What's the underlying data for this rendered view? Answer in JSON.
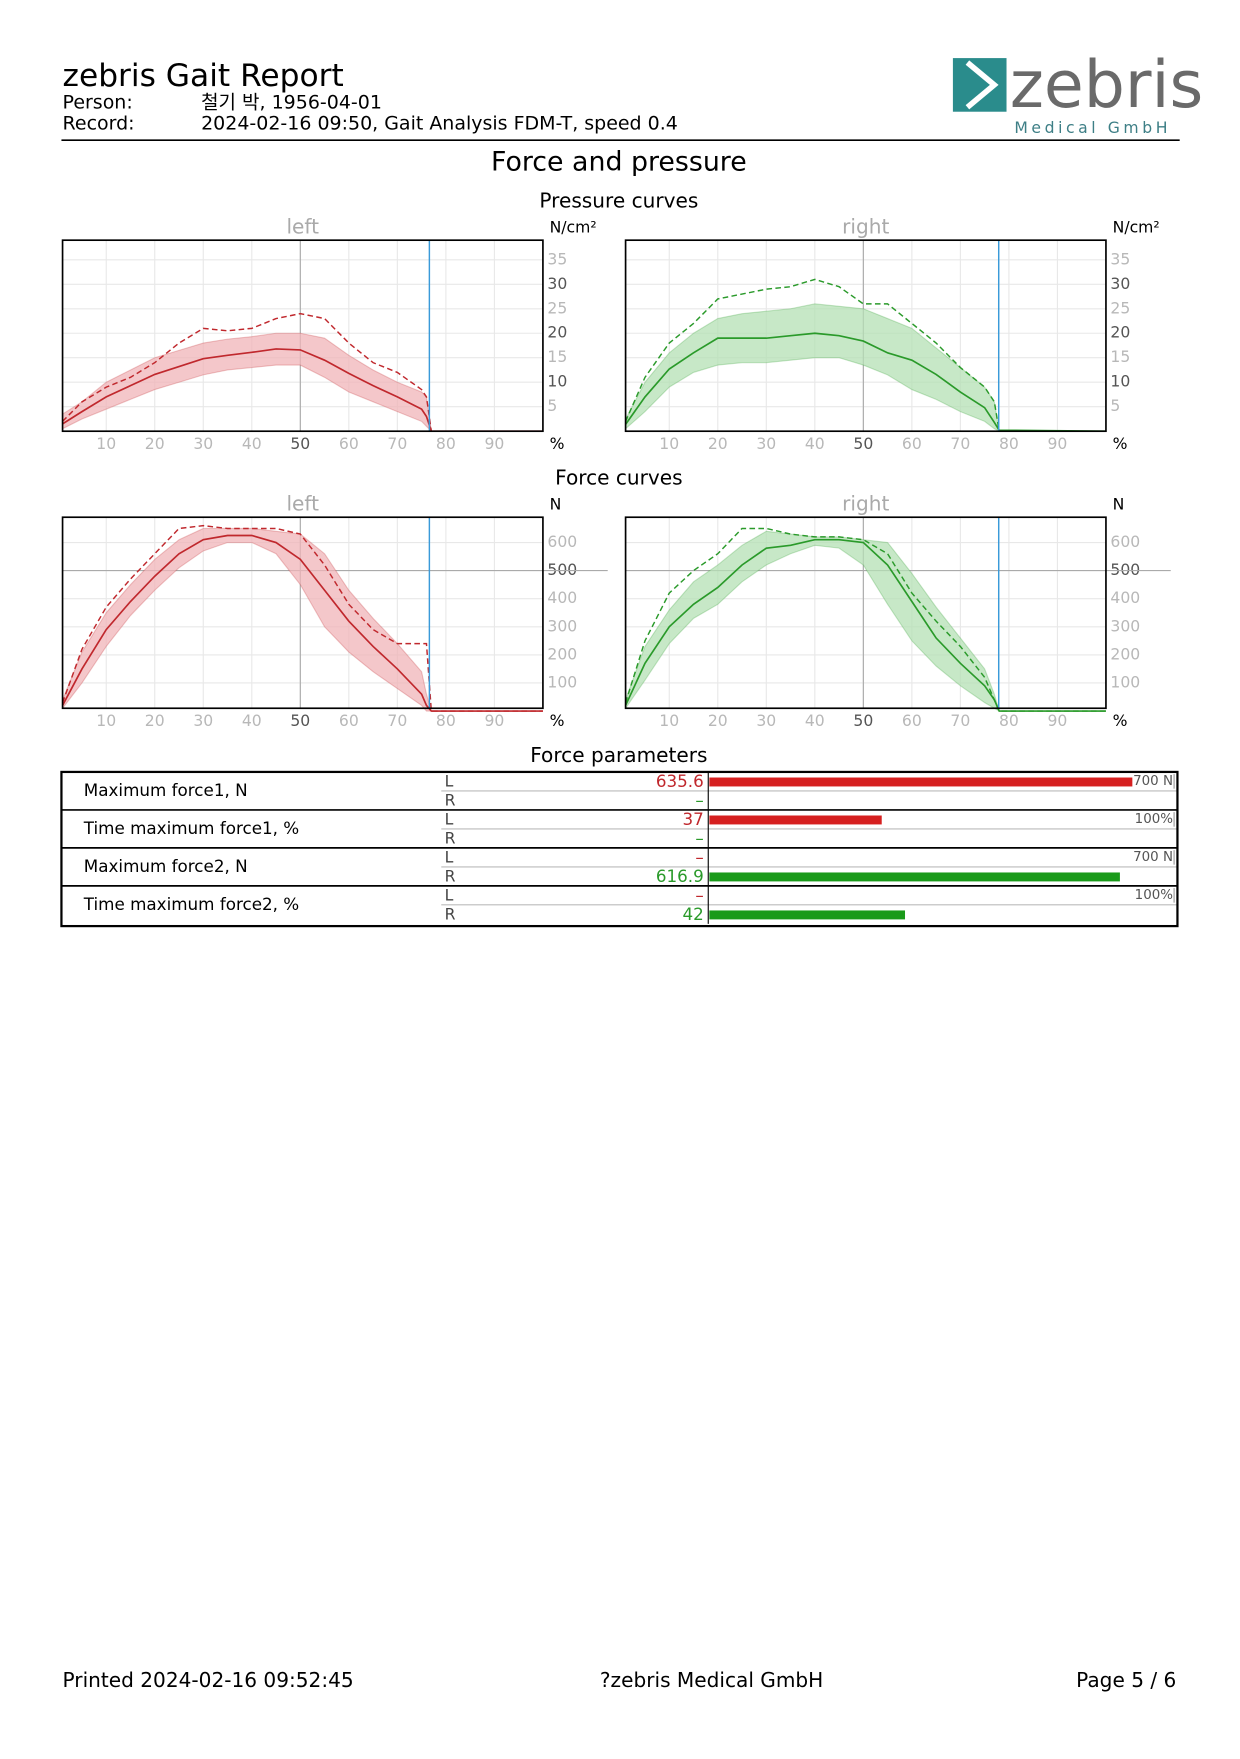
{
  "header": {
    "title": "zebris Gait Report",
    "person_label": "Person:",
    "person": "철기 박, 1956-04-01",
    "record_label": "Record:",
    "record": "2024-02-16 09:50, Gait Analysis FDM-T, speed 0.4",
    "logo_name": "zebris",
    "logo_sub": "Medical GmbH"
  },
  "section_title": "Force and pressure",
  "pressure_title": "Pressure curves",
  "force_title": "Force curves",
  "charts": [
    {
      "type": "line",
      "title": "left",
      "y_unit": "N/cm²",
      "x_unit": "%",
      "color": "#c0282d",
      "band_color": "#f0b4b8",
      "x": [
        1,
        5,
        10,
        15,
        20,
        25,
        30,
        35,
        40,
        45,
        50,
        55,
        60,
        65,
        70,
        75,
        76,
        77,
        100
      ],
      "mean": [
        1.5,
        4,
        7,
        9.3,
        11.6,
        13.2,
        14.8,
        15.5,
        16.1,
        16.8,
        16.6,
        14.5,
        11.8,
        9.3,
        7,
        4.5,
        3,
        0,
        0
      ],
      "upper": [
        3.5,
        6,
        10,
        12.5,
        15,
        16.5,
        18,
        18.8,
        19.3,
        20,
        20,
        19,
        15.5,
        12.5,
        10,
        8,
        7,
        0,
        0
      ],
      "lower": [
        0.5,
        2.5,
        4.5,
        6.5,
        8.5,
        10,
        11.5,
        12.5,
        13,
        13.5,
        13.5,
        11,
        8,
        6,
        4,
        2,
        1,
        0,
        0
      ],
      "max": [
        2,
        6,
        9,
        11,
        14,
        18,
        21,
        20.5,
        21,
        23,
        24,
        23,
        18,
        14,
        12,
        8.5,
        7,
        0,
        0
      ],
      "stance_end": 76.6,
      "xlim": [
        1,
        100
      ],
      "xticks": [
        10,
        20,
        30,
        40,
        50,
        60,
        70,
        80,
        90
      ],
      "dark_xticks": [
        50
      ],
      "ylim": [
        0,
        39
      ],
      "yticks": [
        5,
        10,
        15,
        20,
        25,
        30,
        35
      ],
      "dark_yticks": [
        10,
        20,
        30
      ],
      "ref_x": 50
    },
    {
      "type": "line",
      "title": "right",
      "y_unit": "N/cm²",
      "x_unit": "%",
      "color": "#2a9a2a",
      "band_color": "#b4e0b4",
      "x": [
        1,
        5,
        10,
        15,
        20,
        25,
        30,
        35,
        40,
        45,
        50,
        55,
        60,
        65,
        70,
        75,
        77,
        78,
        100
      ],
      "mean": [
        1.4,
        7,
        12.7,
        16,
        19,
        19,
        19,
        19.5,
        20,
        19.5,
        18.4,
        16,
        14.5,
        11.6,
        8,
        4.8,
        1.8,
        0.2,
        0
      ],
      "upper": [
        2.5,
        10,
        16,
        20,
        23,
        24,
        24.5,
        25,
        26,
        25.5,
        25,
        23,
        21,
        17,
        13,
        9,
        6,
        0,
        0
      ],
      "lower": [
        0.5,
        4,
        9,
        12,
        13.5,
        14,
        14,
        14.5,
        15,
        15,
        13.5,
        11.5,
        8.5,
        6.5,
        4,
        2,
        0.5,
        0,
        0
      ],
      "max": [
        2,
        11,
        18,
        22,
        27,
        28,
        29,
        29.5,
        31,
        29.5,
        26,
        26,
        22,
        18,
        13,
        9,
        6,
        0,
        0
      ],
      "stance_end": 77.9,
      "xlim": [
        1,
        100
      ],
      "xticks": [
        10,
        20,
        30,
        40,
        50,
        60,
        70,
        80,
        90
      ],
      "dark_xticks": [
        50
      ],
      "ylim": [
        0,
        39
      ],
      "yticks": [
        5,
        10,
        15,
        20,
        25,
        30,
        35
      ],
      "dark_yticks": [
        10,
        20,
        30
      ],
      "ref_x": 50
    },
    {
      "type": "line",
      "title": "left",
      "y_unit": "N",
      "x_unit": "%",
      "color": "#c0282d",
      "band_color": "#f0b4b8",
      "x": [
        1,
        5,
        10,
        15,
        20,
        25,
        30,
        35,
        40,
        45,
        50,
        55,
        60,
        65,
        70,
        75,
        76,
        77,
        100
      ],
      "mean": [
        20,
        150,
        290,
        390,
        480,
        560,
        610,
        625,
        625,
        600,
        540,
        430,
        320,
        230,
        150,
        60,
        20,
        0,
        0
      ],
      "upper": [
        40,
        210,
        350,
        450,
        540,
        610,
        650,
        650,
        650,
        640,
        630,
        560,
        430,
        330,
        240,
        140,
        60,
        0,
        0
      ],
      "lower": [
        10,
        100,
        230,
        340,
        430,
        510,
        570,
        600,
        600,
        560,
        450,
        300,
        210,
        140,
        80,
        20,
        0,
        0,
        0
      ],
      "max": [
        30,
        220,
        370,
        470,
        560,
        650,
        660,
        650,
        650,
        650,
        630,
        520,
        380,
        290,
        240,
        240,
        240,
        0,
        0
      ],
      "stance_end": 76.6,
      "xlim": [
        1,
        100
      ],
      "xticks": [
        10,
        20,
        30,
        40,
        50,
        60,
        70,
        80,
        90
      ],
      "dark_xticks": [
        50
      ],
      "ylim": [
        10,
        690
      ],
      "yticks": [
        100,
        200,
        300,
        400,
        500,
        600
      ],
      "dark_yticks": [
        500
      ],
      "ref_x": 50,
      "ref_y": 500
    },
    {
      "type": "line",
      "title": "right",
      "y_unit": "N",
      "x_unit": "%",
      "color": "#2a9a2a",
      "band_color": "#b4e0b4",
      "x": [
        1,
        5,
        10,
        15,
        20,
        25,
        30,
        35,
        40,
        45,
        50,
        55,
        60,
        65,
        70,
        75,
        77,
        78,
        100
      ],
      "mean": [
        20,
        170,
        300,
        380,
        440,
        520,
        580,
        590,
        610,
        610,
        600,
        520,
        390,
        260,
        170,
        90,
        40,
        0,
        0
      ],
      "upper": [
        40,
        230,
        360,
        460,
        520,
        590,
        640,
        630,
        620,
        620,
        610,
        600,
        490,
        370,
        260,
        150,
        60,
        0,
        0
      ],
      "lower": [
        10,
        110,
        240,
        330,
        380,
        460,
        520,
        560,
        590,
        580,
        520,
        380,
        250,
        160,
        90,
        30,
        10,
        0,
        0
      ],
      "max": [
        30,
        250,
        420,
        500,
        560,
        650,
        650,
        630,
        620,
        620,
        610,
        560,
        420,
        320,
        230,
        120,
        40,
        0,
        0
      ],
      "stance_end": 77.9,
      "xlim": [
        1,
        100
      ],
      "xticks": [
        10,
        20,
        30,
        40,
        50,
        60,
        70,
        80,
        90
      ],
      "dark_xticks": [
        50
      ],
      "ylim": [
        10,
        690
      ],
      "yticks": [
        100,
        200,
        300,
        400,
        500,
        600
      ],
      "dark_yticks": [
        500
      ],
      "ref_x": 50,
      "ref_y": 500
    }
  ],
  "parameters": {
    "title": "Force parameters",
    "side_labels": [
      "L",
      "R"
    ],
    "colors": [
      "#d62020",
      "#1a9a1a"
    ],
    "value_colors": [
      "#c0282d",
      "#2a9a2a"
    ],
    "rows": [
      {
        "label": "Maximum force1, N",
        "scale": {
          "value": 700,
          "label": "700 N"
        },
        "values": [
          635.6,
          "–"
        ]
      },
      {
        "label": "Time maximum force1, %",
        "scale": {
          "value": 100,
          "label": "100%"
        },
        "values": [
          37,
          "–"
        ]
      },
      {
        "label": "Maximum force2, N",
        "scale": {
          "value": 700,
          "label": "700 N"
        },
        "values": [
          "–",
          616.9
        ]
      },
      {
        "label": "Time maximum force2, %",
        "scale": {
          "value": 100,
          "label": "100%"
        },
        "values": [
          "–",
          42
        ]
      }
    ]
  },
  "footer": {
    "printed": "Printed  2024-02-16 09:52:45",
    "company": "?zebris Medical GmbH",
    "page": "Page  5 / 6"
  }
}
